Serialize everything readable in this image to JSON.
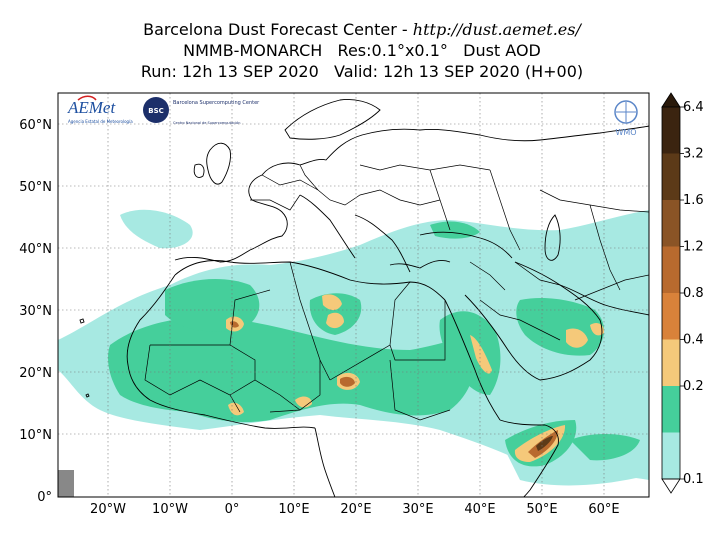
{
  "title": {
    "line1_prefix": "Barcelona Dust Forecast Center - ",
    "line1_url": "http://dust.aemet.es/",
    "line2": "NMMB-MONARCH   Res:0.1°x0.1°   Dust AOD",
    "line3": "Run: 12h 13 SEP 2020   Valid: 12h 13 SEP 2020 (H+00)"
  },
  "axes": {
    "lat_labels": [
      "60°N",
      "50°N",
      "40°N",
      "30°N",
      "20°N",
      "10°N",
      "0°"
    ],
    "lon_labels": [
      "20°W",
      "10°W",
      "0°",
      "10°E",
      "20°E",
      "30°E",
      "40°E",
      "50°E",
      "60°E"
    ]
  },
  "colorbar": {
    "labels": [
      "6.4",
      "3.2",
      "1.6",
      "1.2",
      "0.8",
      "0.4",
      "0.2",
      "0.1"
    ],
    "colors": [
      "#3b2410",
      "#5c3a18",
      "#8a5426",
      "#b86a2e",
      "#d9823a",
      "#f5c97a",
      "#45cf9b",
      "#a7e9e2"
    ]
  },
  "logos": {
    "aemet": "AEMet",
    "aemet_sub": "Agencia Estatal de Meteorología",
    "bsc": "BSC",
    "bsc_text": "Barcelona Supercomputing Center",
    "bsc_sub": "Centro Nacional de Supercomputación",
    "wmo": "WMO"
  }
}
